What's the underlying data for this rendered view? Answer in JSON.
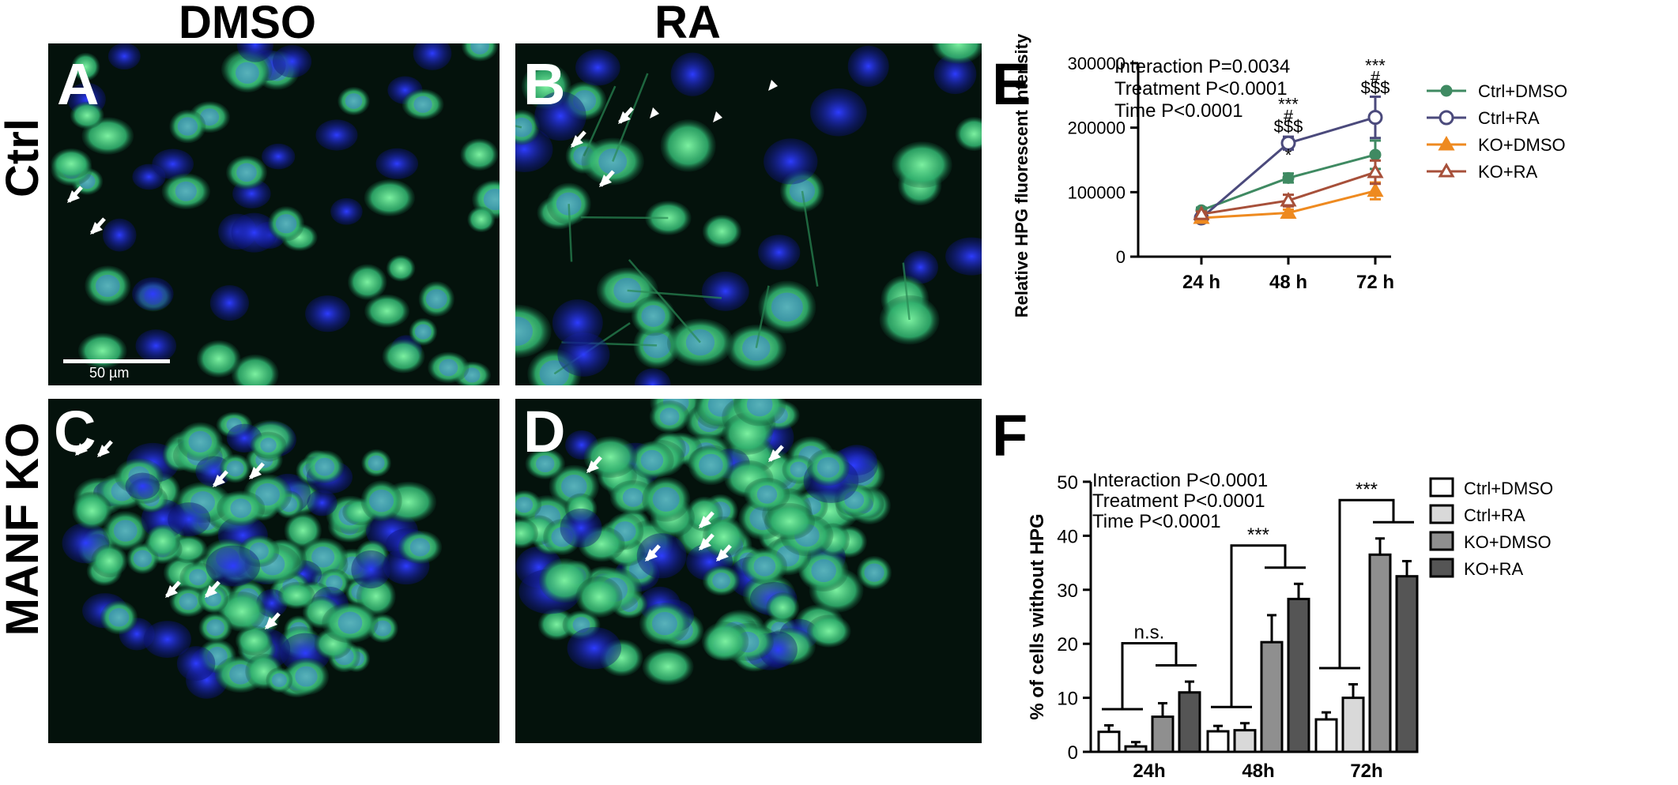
{
  "columns": [
    "DMSO",
    "RA"
  ],
  "rows": [
    "Ctrl",
    "MANF KO"
  ],
  "panels": {
    "A": {
      "letter": "A",
      "scale_label": "50 µm"
    },
    "B": {
      "letter": "B"
    },
    "C": {
      "letter": "C"
    },
    "D": {
      "letter": "D"
    },
    "E": {
      "letter": "E"
    },
    "F": {
      "letter": "F"
    }
  },
  "chart_data": [
    {
      "panel": "E",
      "type": "line",
      "ylabel": "Relative HPG fluorescent intensity",
      "xlabel": "",
      "categories": [
        "24 h",
        "48 h",
        "72 h"
      ],
      "ylim": [
        0,
        300000
      ],
      "yticks": [
        0,
        100000,
        200000,
        300000
      ],
      "series": [
        {
          "name": "Ctrl+DMSO",
          "color": "#3f8a62",
          "marker": "circle-filled",
          "values": [
            72000,
            122000,
            158000
          ],
          "errors": [
            4000,
            7000,
            22000
          ]
        },
        {
          "name": "Ctrl+RA",
          "color": "#4b4a7c",
          "marker": "circle-open",
          "values": [
            60000,
            176000,
            216000
          ],
          "errors": [
            3000,
            10000,
            32000
          ]
        },
        {
          "name": "KO+DMSO",
          "color": "#ee8a20",
          "marker": "triangle-filled",
          "values": [
            60000,
            68000,
            102000
          ],
          "errors": [
            3000,
            5000,
            13000
          ]
        },
        {
          "name": "KO+RA",
          "color": "#a7503a",
          "marker": "triangle-open",
          "values": [
            66000,
            87000,
            131000
          ],
          "errors": [
            4000,
            9000,
            18000
          ]
        }
      ],
      "stats": [
        "Interaction P=0.0034",
        "Treatment  P<0.0001",
        "Time          P<0.0001"
      ],
      "annotations": [
        {
          "x": 1,
          "y": 148000,
          "text": "*"
        },
        {
          "x": 1,
          "y": 227000,
          "text": "***"
        },
        {
          "x": 1,
          "y": 209000,
          "text": "#"
        },
        {
          "x": 1,
          "y": 193000,
          "text": "$$$"
        },
        {
          "x": 2,
          "y": 287000,
          "text": "***"
        },
        {
          "x": 2,
          "y": 269000,
          "text": "#"
        },
        {
          "x": 2,
          "y": 253000,
          "text": "$$$"
        }
      ],
      "legend_position": "right",
      "grid": false
    },
    {
      "panel": "F",
      "type": "bar",
      "ylabel": "% of cells without HPG",
      "xlabel": "",
      "categories": [
        "24h",
        "48h",
        "72h"
      ],
      "ylim": [
        0,
        50
      ],
      "yticks": [
        0,
        10,
        20,
        30,
        40,
        50
      ],
      "series": [
        {
          "name": "Ctrl+DMSO",
          "color": "#ffffff",
          "values": [
            3.7,
            3.8,
            6.0
          ],
          "errors": [
            1.2,
            1.0,
            1.3
          ]
        },
        {
          "name": "Ctrl+RA",
          "color": "#d9d9d9",
          "values": [
            1.0,
            4.0,
            10.0
          ],
          "errors": [
            0.8,
            1.3,
            2.5
          ]
        },
        {
          "name": "KO+DMSO",
          "color": "#8f8f8f",
          "values": [
            6.5,
            20.3,
            36.5
          ],
          "errors": [
            2.5,
            5.0,
            3.0
          ]
        },
        {
          "name": "KO+RA",
          "color": "#555555",
          "values": [
            11.0,
            28.3,
            32.5
          ],
          "errors": [
            2.0,
            2.8,
            2.8
          ]
        }
      ],
      "stats": [
        "Interaction P<0.0001",
        "Treatment  P<0.0001",
        "Time           P<0.0001"
      ],
      "significance": [
        "n.s.",
        "***",
        "***"
      ],
      "legend_position": "right",
      "grid": false
    }
  ]
}
